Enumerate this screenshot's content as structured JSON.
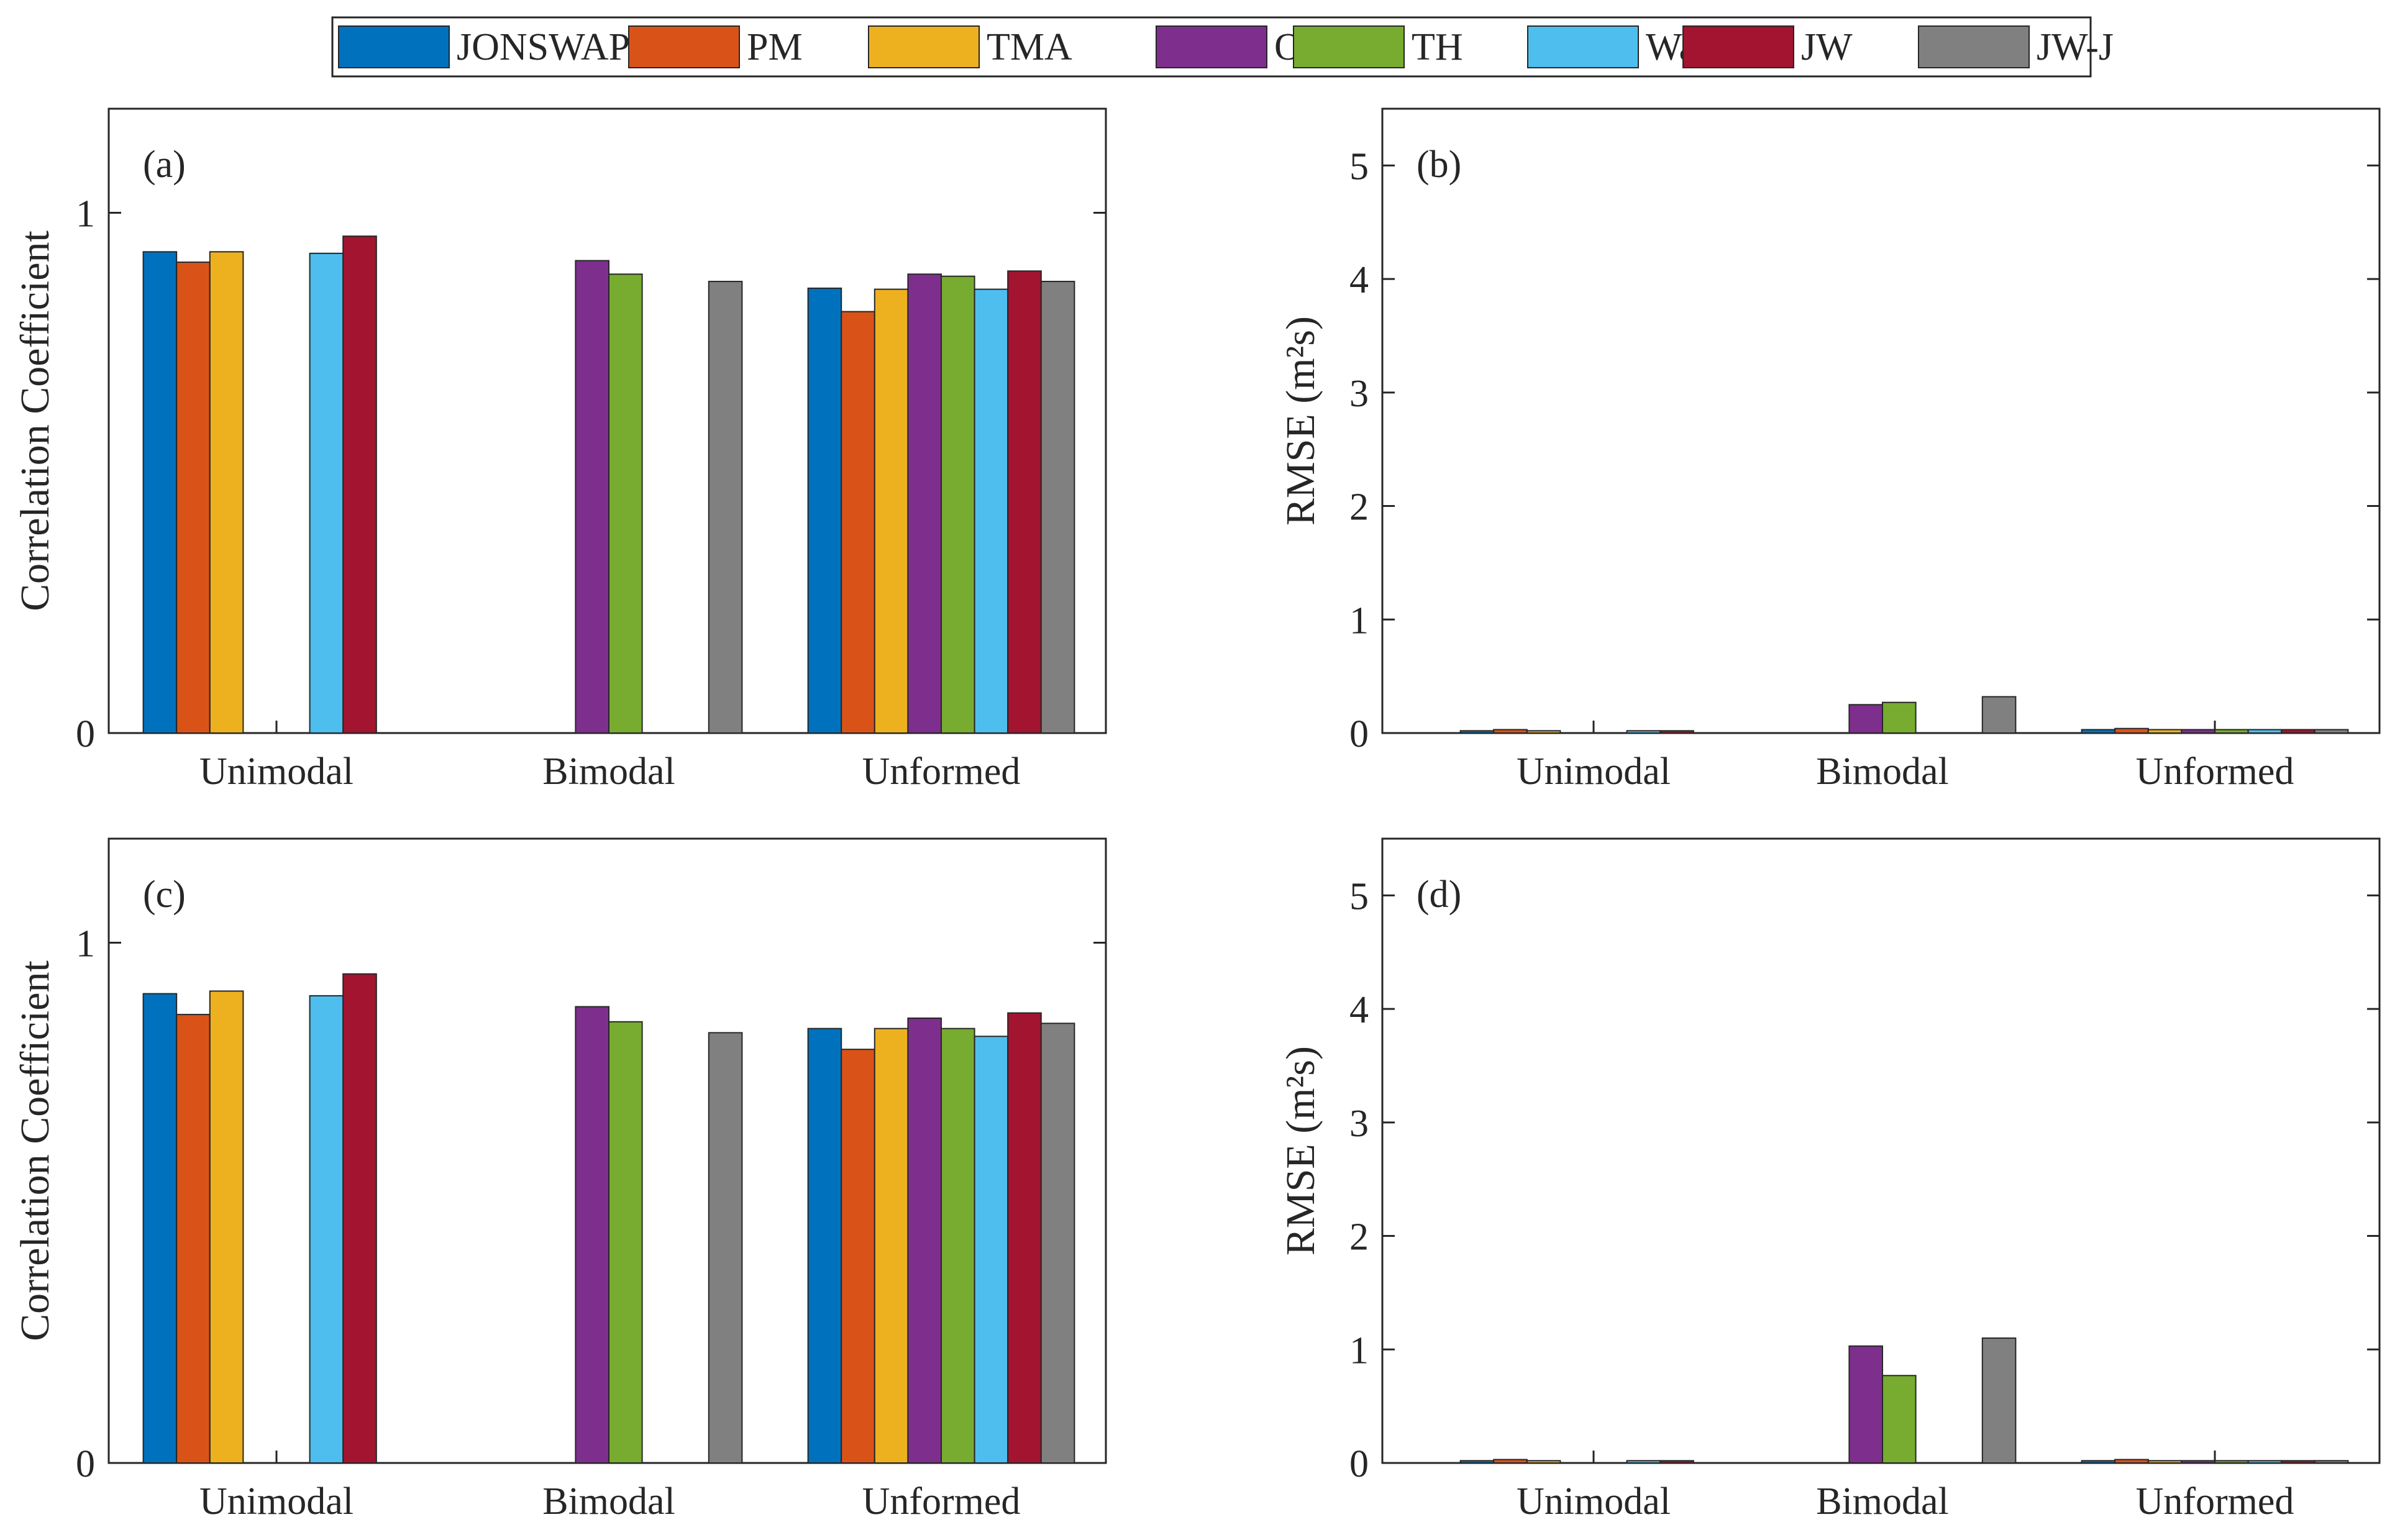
{
  "legend": {
    "entries": [
      {
        "name": "JONSWAP",
        "color": "#0072BD"
      },
      {
        "name": "PM",
        "color": "#D95319"
      },
      {
        "name": "TMA",
        "color": "#EDB120"
      },
      {
        "name": "OH",
        "color": "#7E2F8E"
      },
      {
        "name": "TH",
        "color": "#77AC30"
      },
      {
        "name": "Wa",
        "color": "#4DBEEE"
      },
      {
        "name": "JW",
        "color": "#A2142F"
      },
      {
        "name": "JW-J",
        "color": "#808080"
      }
    ]
  },
  "chart_data": [
    {
      "type": "bar",
      "panel_label": "(a)",
      "title": "",
      "xlabel": "",
      "ylabel": "Correlation Coefficient",
      "ylim": [
        0,
        1.2
      ],
      "yticks": [
        "0",
        "1"
      ],
      "categories": [
        "Unimodal",
        "Bimodal",
        "Unformed"
      ],
      "series": [
        {
          "name": "JONSWAP",
          "values": [
            0.925,
            null,
            0.855
          ]
        },
        {
          "name": "PM",
          "values": [
            0.905,
            null,
            0.81
          ]
        },
        {
          "name": "TMA",
          "values": [
            0.925,
            null,
            0.853
          ]
        },
        {
          "name": "OH",
          "values": [
            null,
            0.908,
            0.882
          ]
        },
        {
          "name": "TH",
          "values": [
            null,
            0.882,
            0.878
          ]
        },
        {
          "name": "Wa",
          "values": [
            0.922,
            null,
            0.853
          ]
        },
        {
          "name": "JW",
          "values": [
            0.955,
            null,
            0.888
          ]
        },
        {
          "name": "JW-J",
          "values": [
            null,
            0.868,
            0.868
          ]
        }
      ]
    },
    {
      "type": "bar",
      "panel_label": "(b)",
      "title": "",
      "xlabel": "",
      "ylabel": "RMSE (m²s)",
      "ylim": [
        0,
        5.5
      ],
      "yticks": [
        "0",
        "1",
        "2",
        "3",
        "4",
        "5"
      ],
      "categories": [
        "Unimodal",
        "Bimodal",
        "Unformed"
      ],
      "series": [
        {
          "name": "JONSWAP",
          "values": [
            0.02,
            null,
            0.03
          ]
        },
        {
          "name": "PM",
          "values": [
            0.03,
            null,
            0.04
          ]
        },
        {
          "name": "TMA",
          "values": [
            0.02,
            null,
            0.03
          ]
        },
        {
          "name": "OH",
          "values": [
            null,
            0.25,
            0.03
          ]
        },
        {
          "name": "TH",
          "values": [
            null,
            0.27,
            0.03
          ]
        },
        {
          "name": "Wa",
          "values": [
            0.02,
            null,
            0.03
          ]
        },
        {
          "name": "JW",
          "values": [
            0.02,
            null,
            0.03
          ]
        },
        {
          "name": "JW-J",
          "values": [
            null,
            0.32,
            0.03
          ]
        }
      ]
    },
    {
      "type": "bar",
      "panel_label": "(c)",
      "title": "",
      "xlabel": "",
      "ylabel": "Correlation Coefficient",
      "ylim": [
        0,
        1.2
      ],
      "yticks": [
        "0",
        "1"
      ],
      "categories": [
        "Unimodal",
        "Bimodal",
        "Unformed"
      ],
      "series": [
        {
          "name": "JONSWAP",
          "values": [
            0.902,
            null,
            0.835
          ]
        },
        {
          "name": "PM",
          "values": [
            0.862,
            null,
            0.795
          ]
        },
        {
          "name": "TMA",
          "values": [
            0.907,
            null,
            0.835
          ]
        },
        {
          "name": "OH",
          "values": [
            null,
            0.877,
            0.855
          ]
        },
        {
          "name": "TH",
          "values": [
            null,
            0.848,
            0.835
          ]
        },
        {
          "name": "Wa",
          "values": [
            0.898,
            null,
            0.82
          ]
        },
        {
          "name": "JW",
          "values": [
            0.94,
            null,
            0.865
          ]
        },
        {
          "name": "JW-J",
          "values": [
            null,
            0.827,
            0.845
          ]
        }
      ]
    },
    {
      "type": "bar",
      "panel_label": "(d)",
      "title": "",
      "xlabel": "",
      "ylabel": "RMSE (m²s)",
      "ylim": [
        0,
        5.5
      ],
      "yticks": [
        "0",
        "1",
        "2",
        "3",
        "4",
        "5"
      ],
      "categories": [
        "Unimodal",
        "Bimodal",
        "Unformed"
      ],
      "series": [
        {
          "name": "JONSWAP",
          "values": [
            0.02,
            null,
            0.02
          ]
        },
        {
          "name": "PM",
          "values": [
            0.03,
            null,
            0.03
          ]
        },
        {
          "name": "TMA",
          "values": [
            0.02,
            null,
            0.02
          ]
        },
        {
          "name": "OH",
          "values": [
            null,
            1.03,
            0.02
          ]
        },
        {
          "name": "TH",
          "values": [
            null,
            0.77,
            0.02
          ]
        },
        {
          "name": "Wa",
          "values": [
            0.02,
            null,
            0.02
          ]
        },
        {
          "name": "JW",
          "values": [
            0.02,
            null,
            0.02
          ]
        },
        {
          "name": "JW-J",
          "values": [
            null,
            1.1,
            0.02
          ]
        }
      ]
    }
  ]
}
